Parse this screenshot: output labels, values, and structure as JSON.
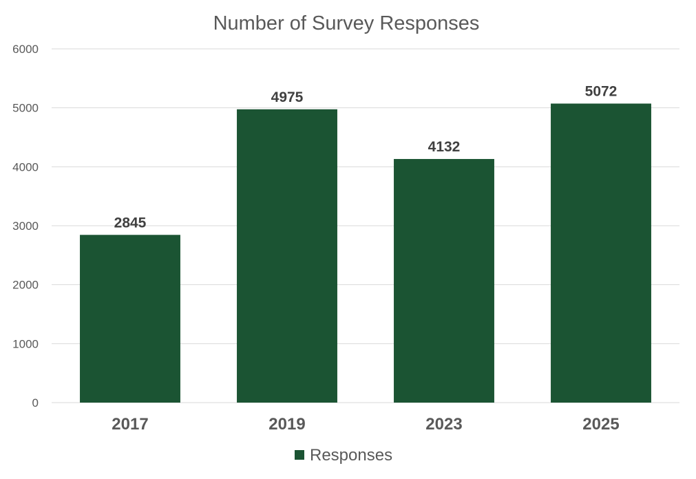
{
  "chart_data": {
    "type": "bar",
    "title": "Number of Survey Responses",
    "categories": [
      "2017",
      "2019",
      "2023",
      "2025"
    ],
    "series": [
      {
        "name": "Responses",
        "values": [
          2845,
          4975,
          4132,
          5072
        ],
        "color": "#1b5433"
      }
    ],
    "ylim": [
      0,
      6000
    ],
    "yticks": [
      "0",
      "1000",
      "2000",
      "3000",
      "4000",
      "5000",
      "6000"
    ],
    "grid": true,
    "data_labels": [
      "2845",
      "4975",
      "4132",
      "5072"
    ],
    "legend_position": "bottom"
  }
}
